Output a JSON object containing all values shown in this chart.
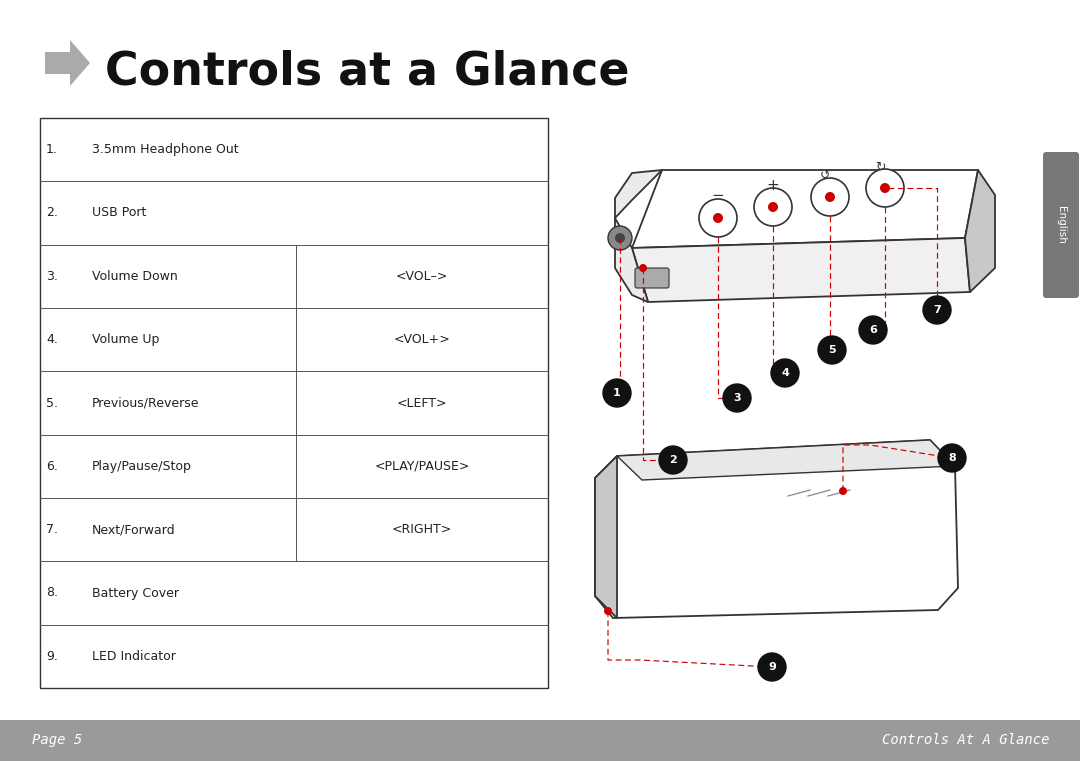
{
  "title": "Controls at a Glance",
  "bg_color": "#ffffff",
  "footer_bg": "#9a9a9a",
  "footer_left": "Page 5",
  "footer_right": "Controls At A Glance",
  "sidebar_bg": "#787878",
  "sidebar_text": "English",
  "table_rows": [
    {
      "num": "1.",
      "desc": "3.5mm Headphone Out",
      "shortcut": ""
    },
    {
      "num": "2.",
      "desc": "USB Port",
      "shortcut": ""
    },
    {
      "num": "3.",
      "desc": "Volume Down",
      "shortcut": "<VOL–>"
    },
    {
      "num": "4.",
      "desc": "Volume Up",
      "shortcut": "<VOL+>"
    },
    {
      "num": "5.",
      "desc": "Previous/Reverse",
      "shortcut": "<LEFT>"
    },
    {
      "num": "6.",
      "desc": "Play/Pause/Stop",
      "shortcut": "<PLAY/PAUSE>"
    },
    {
      "num": "7.",
      "desc": "Next/Forward",
      "shortcut": "<RIGHT>"
    },
    {
      "num": "8.",
      "desc": "Battery Cover",
      "shortcut": ""
    },
    {
      "num": "9.",
      "desc": "LED Indicator",
      "shortcut": ""
    }
  ],
  "has_shortcut": [
    false,
    false,
    true,
    true,
    true,
    true,
    true,
    false,
    false
  ],
  "num_bg": "#111111",
  "red_color": "#cc0000",
  "device_edge": "#333333",
  "device_face": "#ffffff",
  "device_side": "#e0e0e0",
  "device_dark": "#c8c8c8"
}
